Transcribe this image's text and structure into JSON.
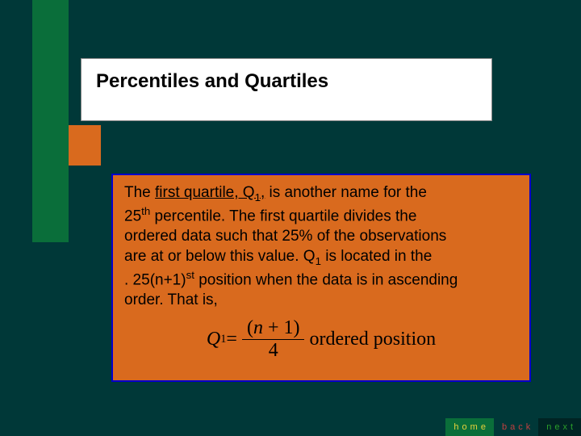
{
  "slide": {
    "title": "Percentiles and Quartiles",
    "body": {
      "line1a": "The ",
      "underlined1": "first quartile, Q",
      "underlined_sub": "1",
      "underlined_tail": ",",
      "line1b": " is another name for the",
      "line2a": "25",
      "line2sup": "th",
      "line2b": " percentile.  The first quartile divides the",
      "line3": "ordered data such that 25% of the observations",
      "line4a": "are at or below this value.  Q",
      "line4sub": "1",
      "line4b": " is located in the",
      "line5a": ". 25(n+1)",
      "line5sup": "st",
      "line5b": " position when the data is in ascending",
      "line6": "order.  That is,"
    },
    "formula": {
      "lhs": "Q",
      "lhs_sub": "1",
      "eq": " = ",
      "num_open": "(",
      "num_var": "n",
      "num_rest": " + 1)",
      "den": "4",
      "tail": " ordered position"
    },
    "nav": {
      "home": "home",
      "back": "back",
      "next": "next"
    },
    "colors": {
      "slide_bg": "#003838",
      "stripe": "#0a6e3a",
      "accent": "#d96a1e",
      "title_bg": "#ffffff",
      "body_bg": "#d96a1e",
      "body_border": "#0000cc",
      "home_bg": "#0a6e3a",
      "home_fg": "#e8d23a",
      "back_bg": "#003838",
      "back_fg": "#c24040",
      "next_bg": "#002424",
      "next_fg": "#2aa02a"
    }
  }
}
